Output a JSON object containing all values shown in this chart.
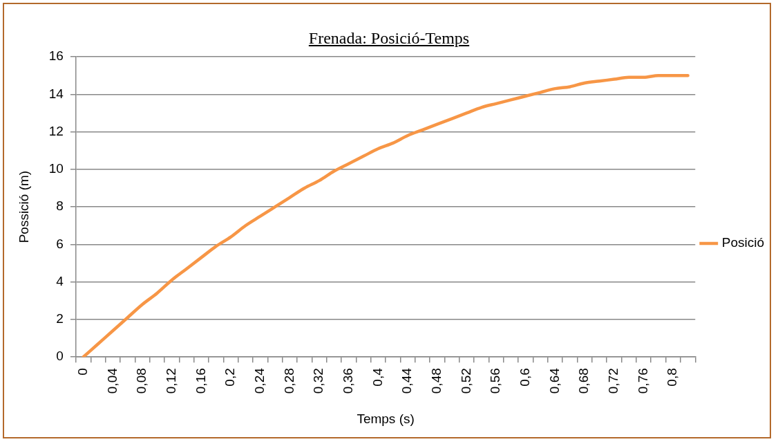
{
  "chart_data": {
    "type": "line",
    "title": "Frenada: Posició-Temps",
    "xlabel": "Temps (s)",
    "ylabel": "Possició (m)",
    "categories": [
      "0",
      null,
      "0,04",
      null,
      "0,08",
      null,
      "0,12",
      null,
      "0,16",
      null,
      "0,2",
      null,
      "0,24",
      null,
      "0,28",
      null,
      "0,32",
      null,
      "0,36",
      null,
      "0,4",
      null,
      "0,44",
      null,
      "0,48",
      null,
      "0,52",
      null,
      "0,56",
      null,
      "0,6",
      null,
      "0,64",
      null,
      "0,68",
      null,
      "0,72",
      null,
      "0,76",
      null,
      "0,8",
      null
    ],
    "series": [
      {
        "name": "Posició",
        "color": "#f79646",
        "values": [
          0,
          0.7,
          1.4,
          2.1,
          2.8,
          3.4,
          4.1,
          4.7,
          5.3,
          5.9,
          6.4,
          7.0,
          7.5,
          8.0,
          8.5,
          9.0,
          9.4,
          9.9,
          10.3,
          10.7,
          11.1,
          11.4,
          11.8,
          12.1,
          12.4,
          12.7,
          13.0,
          13.3,
          13.5,
          13.7,
          13.9,
          14.1,
          14.3,
          14.4,
          14.6,
          14.7,
          14.8,
          14.9,
          14.9,
          15.0,
          15.0,
          15.0
        ]
      }
    ],
    "ylim": [
      0,
      16
    ],
    "yticks": [
      0,
      2,
      4,
      6,
      8,
      10,
      12,
      14,
      16
    ],
    "grid": "y",
    "legend": "right",
    "marker": "none",
    "line_style": "solid"
  }
}
